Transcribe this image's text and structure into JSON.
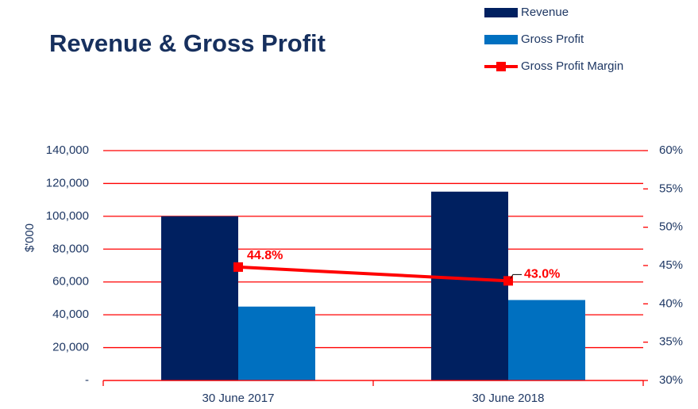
{
  "chart_data": {
    "type": "bar",
    "title": "Revenue & Gross Profit",
    "y_label": "$'000",
    "categories": [
      "30 June 2017",
      "30 June 2018"
    ],
    "series": [
      {
        "name": "Revenue",
        "color": "#002060",
        "values": [
          100000,
          115000
        ]
      },
      {
        "name": "Gross Profit",
        "color": "#0070c0",
        "values": [
          45000,
          49000
        ]
      },
      {
        "name": "Gross Profit Margin",
        "color": "#ff0000",
        "axis": "y2",
        "type": "line",
        "values": [
          44.8,
          43.0
        ],
        "value_labels": [
          "44.8%",
          "43.0%"
        ]
      }
    ],
    "ylim": [
      0,
      140000
    ],
    "yticks": [
      {
        "value": 0,
        "label": "-"
      },
      {
        "value": 20000,
        "label": "20,000"
      },
      {
        "value": 40000,
        "label": "40,000"
      },
      {
        "value": 60000,
        "label": "60,000"
      },
      {
        "value": 80000,
        "label": "80,000"
      },
      {
        "value": 100000,
        "label": "100,000"
      },
      {
        "value": 120000,
        "label": "120,000"
      },
      {
        "value": 140000,
        "label": "140,000"
      }
    ],
    "y2lim": [
      30,
      60
    ],
    "y2ticks": [
      {
        "value": 30,
        "label": "30%"
      },
      {
        "value": 35,
        "label": "35%"
      },
      {
        "value": 40,
        "label": "40%"
      },
      {
        "value": 45,
        "label": "45%"
      },
      {
        "value": 50,
        "label": "50%"
      },
      {
        "value": 55,
        "label": "55%"
      },
      {
        "value": 60,
        "label": "60%"
      }
    ],
    "grid": true,
    "grid_color": "#ff0000",
    "legend": "top-right"
  }
}
